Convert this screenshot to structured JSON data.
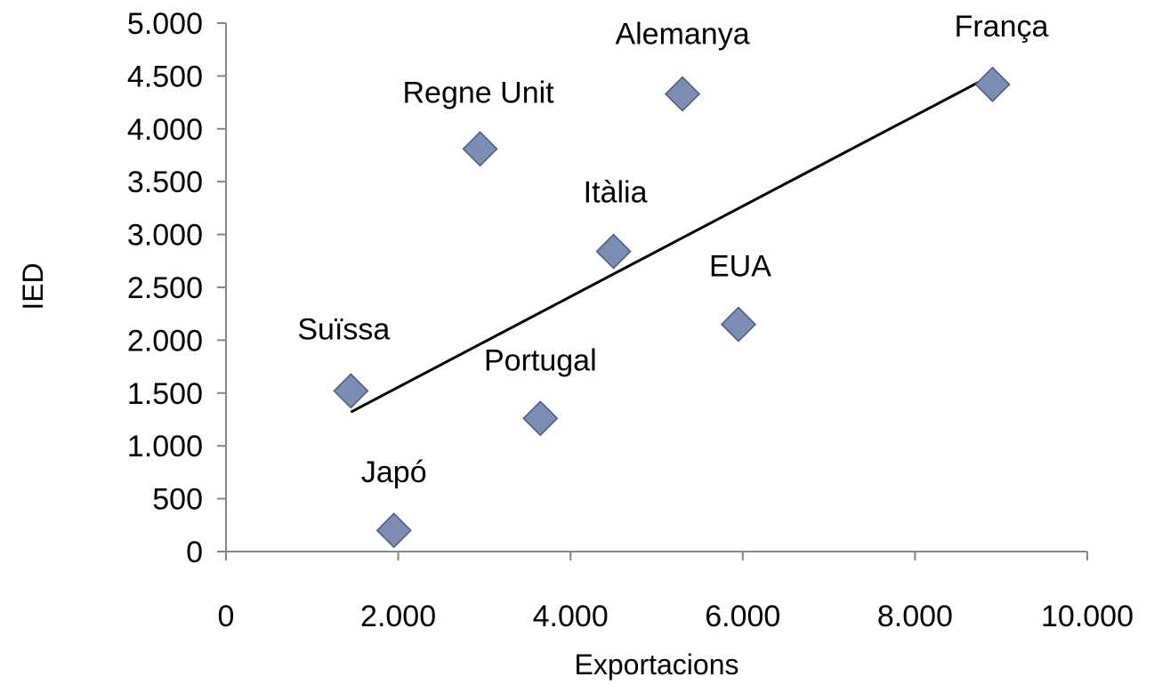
{
  "chart_data": {
    "type": "scatter",
    "title": "",
    "xlabel": "Exportacions",
    "ylabel": "IED",
    "xlim": [
      0,
      10000
    ],
    "ylim": [
      0,
      5000
    ],
    "x_ticks": [
      0,
      2000,
      4000,
      6000,
      8000,
      10000
    ],
    "x_tick_labels": [
      "0",
      "2.000",
      "4.000",
      "6.000",
      "8.000",
      "10.000"
    ],
    "y_ticks": [
      0,
      500,
      1000,
      1500,
      2000,
      2500,
      3000,
      3500,
      4000,
      4500,
      5000
    ],
    "y_tick_labels": [
      "0",
      "500",
      "1.000",
      "1.500",
      "2.000",
      "2.500",
      "3.000",
      "3.500",
      "4.000",
      "4.500",
      "5.000"
    ],
    "grid": false,
    "legend": "none",
    "marker_color": "#7b8db3",
    "points": [
      {
        "label": "França",
        "x": 8900,
        "y": 4420
      },
      {
        "label": "Alemanya",
        "x": 5300,
        "y": 4330
      },
      {
        "label": "Regne Unit",
        "x": 2950,
        "y": 3810
      },
      {
        "label": "Itàlia",
        "x": 4500,
        "y": 2840
      },
      {
        "label": "EUA",
        "x": 5950,
        "y": 2150
      },
      {
        "label": "Suïssa",
        "x": 1450,
        "y": 1520
      },
      {
        "label": "Portugal",
        "x": 3650,
        "y": 1260
      },
      {
        "label": "Japó",
        "x": 1950,
        "y": 200
      }
    ],
    "trendline": {
      "x": [
        1450,
        8900
      ],
      "y": [
        1320,
        4510
      ]
    }
  }
}
